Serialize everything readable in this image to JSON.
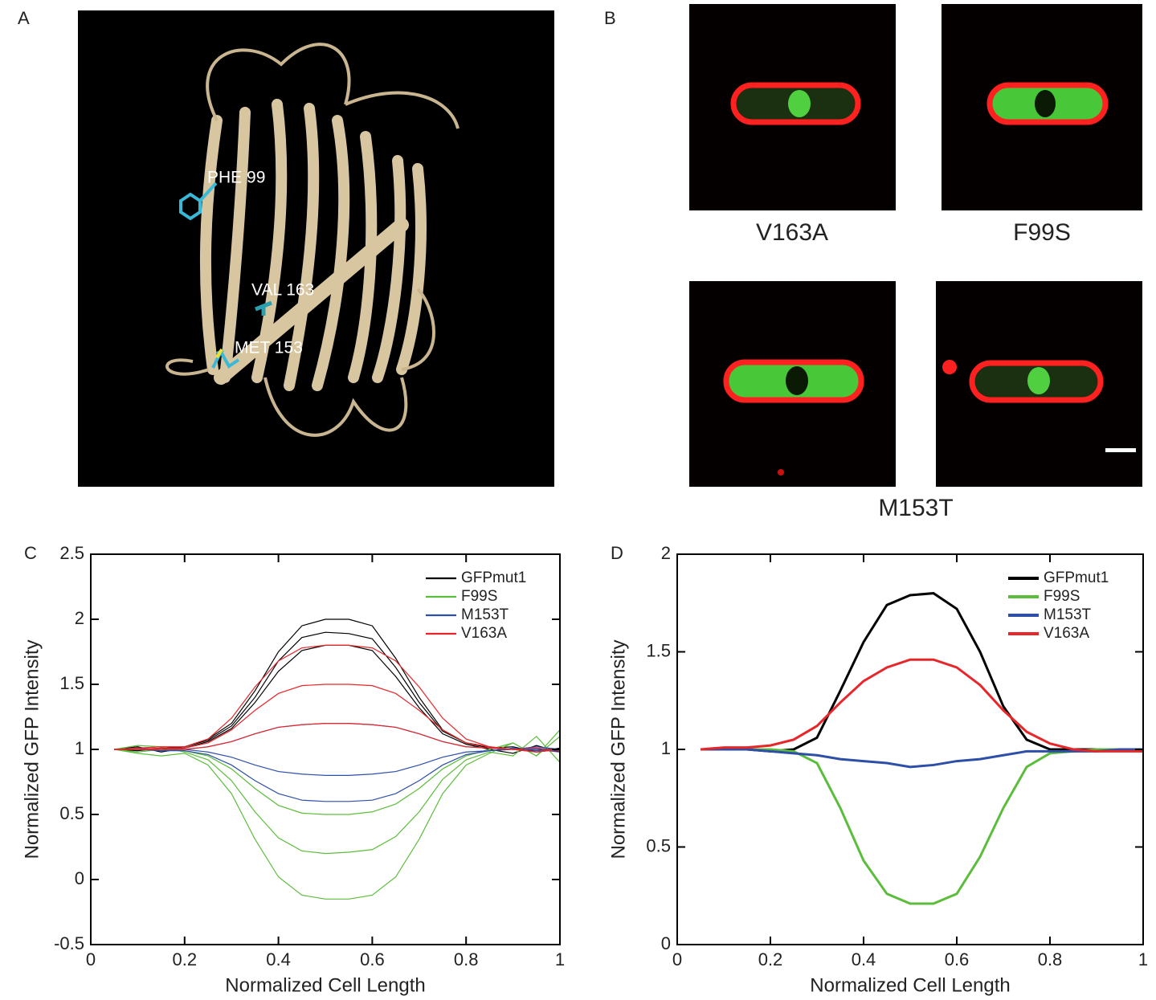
{
  "panels": {
    "A": {
      "letter": "A",
      "labels": [
        "PHE 99",
        "VAL 163",
        "MET 153"
      ]
    },
    "B": {
      "letter": "B",
      "labels": [
        "V163A",
        "F99S",
        "M153T"
      ]
    }
  },
  "chart_data": [
    {
      "type": "line",
      "panel": "C",
      "xlabel": "Normalized Cell Length",
      "ylabel": "Normalized GFP Intensity",
      "xlim": [
        0,
        1
      ],
      "xticks": [
        0,
        0.2,
        0.4,
        0.6,
        0.8,
        1
      ],
      "ylim": [
        -0.5,
        2.5
      ],
      "yticks": [
        -0.5,
        0,
        0.5,
        1,
        1.5,
        2,
        2.5
      ],
      "legend": "top-right",
      "x": [
        0.05,
        0.1,
        0.15,
        0.2,
        0.25,
        0.3,
        0.35,
        0.4,
        0.45,
        0.5,
        0.55,
        0.6,
        0.65,
        0.7,
        0.75,
        0.8,
        0.85,
        0.9,
        0.95,
        1
      ],
      "series": [
        {
          "name": "GFPmut1",
          "color": "#000000",
          "traces": [
            [
              1,
              1,
              1,
              1.02,
              1.08,
              1.2,
              1.45,
              1.75,
              1.95,
              2,
              2,
              1.95,
              1.7,
              1.4,
              1.15,
              1.05,
              1.02,
              1,
              1,
              1
            ],
            [
              1,
              1.02,
              0.98,
              1.01,
              1.06,
              1.16,
              1.36,
              1.6,
              1.76,
              1.8,
              1.8,
              1.76,
              1.56,
              1.32,
              1.12,
              1.04,
              1.0,
              0.97,
              1.03,
              0.98
            ],
            [
              1,
              0.99,
              1.01,
              1.02,
              1.07,
              1.18,
              1.4,
              1.68,
              1.86,
              1.9,
              1.89,
              1.85,
              1.63,
              1.36,
              1.14,
              1.05,
              1.01,
              1.02,
              0.98,
              1.01
            ]
          ]
        },
        {
          "name": "F99S",
          "color": "#5cbd3c",
          "traces": [
            [
              1,
              0.97,
              0.95,
              0.97,
              0.88,
              0.66,
              0.31,
              0.02,
              -0.12,
              -0.15,
              -0.15,
              -0.12,
              0.02,
              0.31,
              0.66,
              0.88,
              0.97,
              1.05,
              0.95,
              1.1
            ],
            [
              1,
              1.03,
              1.02,
              0.98,
              0.92,
              0.76,
              0.52,
              0.32,
              0.22,
              0.2,
              0.21,
              0.23,
              0.33,
              0.52,
              0.77,
              0.92,
              0.98,
              0.95,
              1.1,
              0.9
            ],
            [
              1,
              0.98,
              1.0,
              0.99,
              0.95,
              0.85,
              0.7,
              0.57,
              0.51,
              0.5,
              0.5,
              0.52,
              0.58,
              0.7,
              0.85,
              0.95,
              1.0,
              1.05,
              0.95,
              1.15
            ]
          ]
        },
        {
          "name": "M153T",
          "color": "#2d4fa8",
          "traces": [
            [
              1,
              1,
              0.99,
              0.99,
              0.96,
              0.88,
              0.76,
              0.66,
              0.61,
              0.6,
              0.6,
              0.61,
              0.66,
              0.76,
              0.88,
              0.96,
              0.99,
              1.0,
              1.02,
              1.0
            ],
            [
              1,
              1.01,
              1.0,
              1.0,
              0.98,
              0.94,
              0.88,
              0.83,
              0.81,
              0.8,
              0.8,
              0.81,
              0.83,
              0.88,
              0.94,
              0.98,
              0.99,
              1.01,
              0.99,
              1.0
            ],
            [
              1,
              1,
              1.01,
              1.0,
              1.02,
              1.06,
              1.12,
              1.17,
              1.19,
              1.2,
              1.2,
              1.19,
              1.17,
              1.12,
              1.06,
              1.02,
              1.01,
              1.0,
              1.0,
              0.98
            ]
          ]
        },
        {
          "name": "V163A",
          "color": "#e8262a",
          "traces": [
            [
              1,
              1.01,
              1.02,
              1.02,
              1.08,
              1.24,
              1.48,
              1.68,
              1.78,
              1.8,
              1.8,
              1.78,
              1.68,
              1.48,
              1.24,
              1.08,
              1.02,
              1.0,
              0.98,
              1.0
            ],
            [
              1,
              1.0,
              1.01,
              1.01,
              1.05,
              1.15,
              1.3,
              1.43,
              1.49,
              1.5,
              1.5,
              1.49,
              1.43,
              1.3,
              1.15,
              1.05,
              1.02,
              1.0,
              1.01,
              0.99
            ],
            [
              1,
              1.0,
              1.0,
              1.0,
              1.02,
              1.06,
              1.12,
              1.17,
              1.19,
              1.2,
              1.2,
              1.19,
              1.17,
              1.12,
              1.06,
              1.02,
              1.01,
              1.0,
              0.98,
              1.0
            ]
          ]
        }
      ]
    },
    {
      "type": "line",
      "panel": "D",
      "xlabel": "Normalized Cell Length",
      "ylabel": "Normalized GFP Intensity",
      "xlim": [
        0,
        1
      ],
      "xticks": [
        0,
        0.2,
        0.4,
        0.6,
        0.8,
        1
      ],
      "ylim": [
        0,
        2
      ],
      "yticks": [
        0,
        0.5,
        1,
        1.5,
        2
      ],
      "legend": "top-right",
      "x": [
        0.05,
        0.1,
        0.15,
        0.2,
        0.25,
        0.3,
        0.35,
        0.4,
        0.45,
        0.5,
        0.55,
        0.6,
        0.65,
        0.7,
        0.75,
        0.8,
        0.85,
        0.9,
        0.95,
        1
      ],
      "series": [
        {
          "name": "GFPmut1",
          "color": "#000000",
          "values": [
            1,
            1,
            1,
            0.99,
            1.0,
            1.06,
            1.3,
            1.55,
            1.74,
            1.79,
            1.8,
            1.72,
            1.5,
            1.22,
            1.05,
            1.0,
            1,
            1,
            1,
            1
          ]
        },
        {
          "name": "F99S",
          "color": "#5cbd3c",
          "values": [
            1,
            1,
            1,
            1,
            0.99,
            0.93,
            0.7,
            0.43,
            0.26,
            0.21,
            0.21,
            0.26,
            0.45,
            0.7,
            0.91,
            0.98,
            0.99,
            1,
            1,
            0.99
          ]
        },
        {
          "name": "M153T",
          "color": "#2d4fa8",
          "values": [
            1,
            1,
            1,
            0.99,
            0.98,
            0.97,
            0.95,
            0.94,
            0.93,
            0.91,
            0.92,
            0.94,
            0.95,
            0.97,
            0.99,
            0.99,
            0.99,
            0.99,
            1,
            1
          ]
        },
        {
          "name": "V163A",
          "color": "#e8262a",
          "values": [
            1,
            1.01,
            1.01,
            1.02,
            1.05,
            1.12,
            1.24,
            1.35,
            1.42,
            1.46,
            1.46,
            1.42,
            1.33,
            1.2,
            1.09,
            1.03,
            1.0,
            0.99,
            0.99,
            0.99
          ]
        }
      ]
    }
  ]
}
